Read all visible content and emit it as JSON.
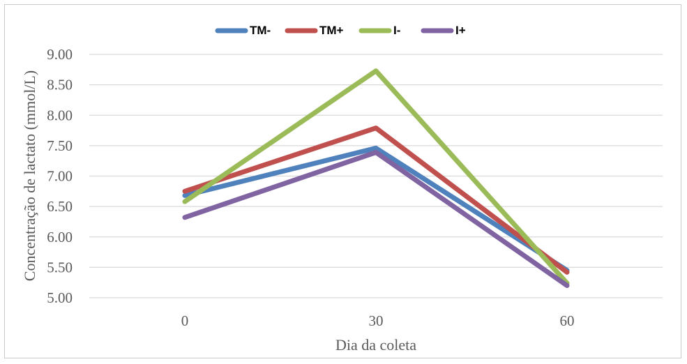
{
  "chart_data": {
    "type": "line",
    "x": [
      "0",
      "30",
      "60"
    ],
    "series": [
      {
        "name": "TM-",
        "color": "#4f81bd",
        "values": [
          6.68,
          7.46,
          5.45
        ]
      },
      {
        "name": "TM+",
        "color": "#c0504d",
        "values": [
          6.75,
          7.79,
          5.42
        ]
      },
      {
        "name": "I-",
        "color": "#9bbb59",
        "values": [
          6.58,
          8.73,
          5.24
        ]
      },
      {
        "name": "I+",
        "color": "#8064a2",
        "values": [
          6.32,
          7.39,
          5.2
        ]
      }
    ],
    "y_ticks": [
      "5.00",
      "5.50",
      "6.00",
      "6.50",
      "7.00",
      "7.50",
      "8.00",
      "8.50",
      "9.00"
    ],
    "ylim": [
      5.0,
      9.0
    ],
    "xlabel": "Dia da coleta",
    "ylabel": "Concentração de lactato (mmol/L)",
    "grid": true,
    "legend_position": "top"
  }
}
